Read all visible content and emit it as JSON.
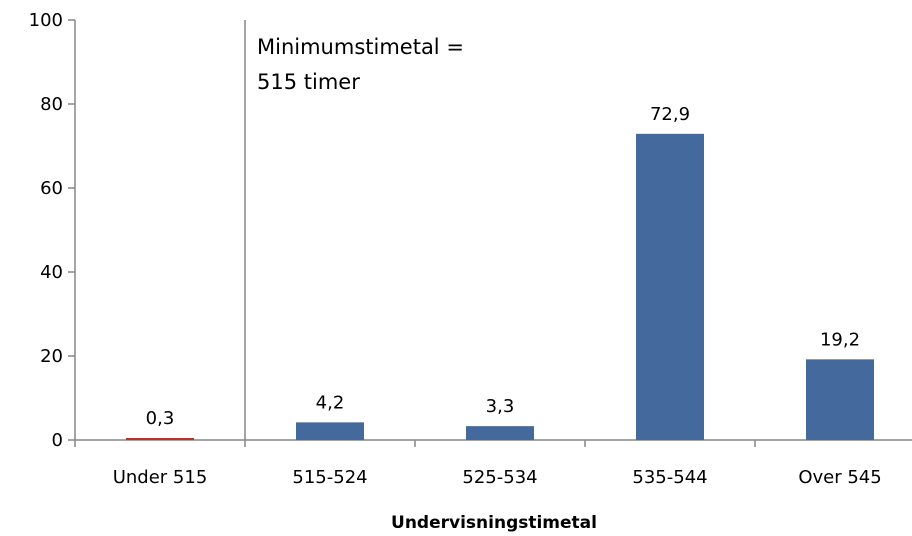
{
  "chart_data": {
    "type": "bar",
    "categories": [
      "Under 515",
      "515-524",
      "525-534",
      "535-544",
      "Over 545"
    ],
    "values": [
      0.3,
      4.2,
      3.3,
      72.9,
      19.2
    ],
    "data_labels": [
      "0,3",
      "4,2",
      "3,3",
      "72,9",
      "19,2"
    ],
    "bar_colors": [
      "#C0302A",
      "#44699C",
      "#44699C",
      "#44699C",
      "#44699C"
    ],
    "xlabel": "Undervisningstimetal",
    "ylabel": "",
    "ylim": [
      0,
      100
    ],
    "yticks": [
      0,
      20,
      40,
      60,
      80,
      100
    ],
    "grid": false,
    "reference_line": {
      "x_between": [
        "Under 515",
        "515-524"
      ]
    },
    "annotation": {
      "lines": [
        "Minimumstimetal =",
        "515 timer"
      ]
    }
  }
}
